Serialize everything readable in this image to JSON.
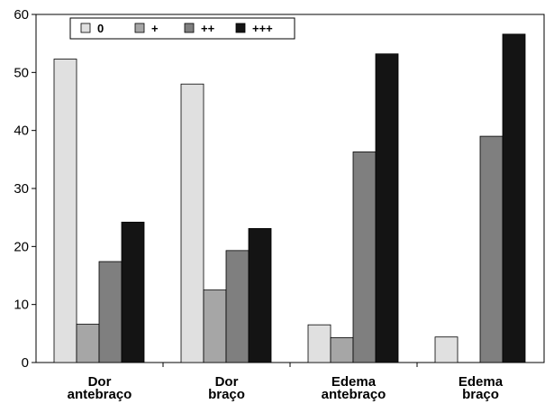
{
  "chart_data": {
    "type": "bar",
    "categories": [
      [
        "Dor",
        "antebraço"
      ],
      [
        "Dor",
        "braço"
      ],
      [
        "Edema",
        "antebraço"
      ],
      [
        "Edema",
        "braço"
      ]
    ],
    "series": [
      {
        "name": "0",
        "color": "#e0e0e0",
        "values": [
          52.3,
          48.0,
          6.5,
          4.4
        ]
      },
      {
        "name": "+",
        "color": "#a6a6a6",
        "values": [
          6.6,
          12.5,
          4.3,
          0
        ]
      },
      {
        "name": "++",
        "color": "#7f7f7f",
        "values": [
          17.4,
          19.3,
          36.3,
          39.0
        ]
      },
      {
        "name": "+++",
        "color": "#141414",
        "values": [
          24.2,
          23.1,
          53.2,
          56.6
        ]
      }
    ],
    "ylim": [
      0,
      60
    ],
    "yticks": [
      "0",
      "10",
      "20",
      "30",
      "40",
      "50",
      "60"
    ],
    "legend_position": "top-left",
    "grid": false
  }
}
